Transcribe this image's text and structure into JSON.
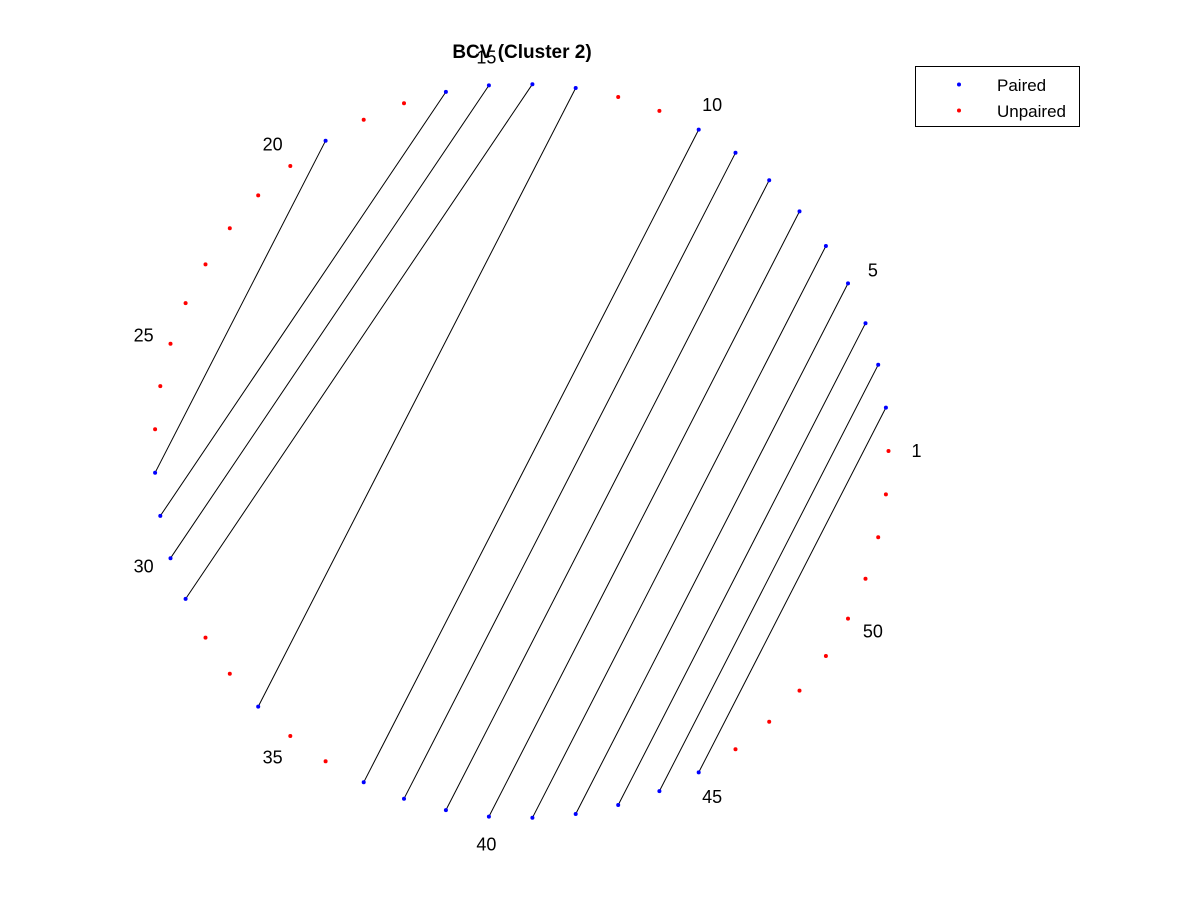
{
  "chart_data": {
    "type": "scatter",
    "title": "BCV (Cluster 2)",
    "node_count": 53,
    "node_label_ticks": [
      "1",
      "5",
      "10",
      "15",
      "20",
      "25",
      "30",
      "35",
      "40",
      "45",
      "50"
    ],
    "pairs": [
      [
        2,
        45
      ],
      [
        3,
        44
      ],
      [
        4,
        43
      ],
      [
        5,
        42
      ],
      [
        6,
        41
      ],
      [
        7,
        40
      ],
      [
        8,
        39
      ],
      [
        9,
        38
      ],
      [
        10,
        37
      ],
      [
        13,
        34
      ],
      [
        14,
        31
      ],
      [
        15,
        30
      ],
      [
        16,
        29
      ],
      [
        19,
        28
      ]
    ],
    "series": [
      {
        "name": "Paired",
        "color": "#0000ff",
        "nodes": [
          2,
          3,
          4,
          5,
          6,
          7,
          8,
          9,
          10,
          13,
          14,
          15,
          16,
          19,
          28,
          29,
          30,
          31,
          34,
          37,
          38,
          39,
          40,
          41,
          42,
          43,
          44,
          45
        ]
      },
      {
        "name": "Unpaired",
        "color": "#ff0000",
        "nodes": [
          1,
          11,
          12,
          17,
          18,
          20,
          21,
          22,
          23,
          24,
          25,
          26,
          27,
          32,
          33,
          35,
          36,
          46,
          47,
          48,
          49,
          50,
          51,
          52,
          53
        ]
      }
    ],
    "arc_color": "#000000",
    "legend_position": "top-right"
  }
}
